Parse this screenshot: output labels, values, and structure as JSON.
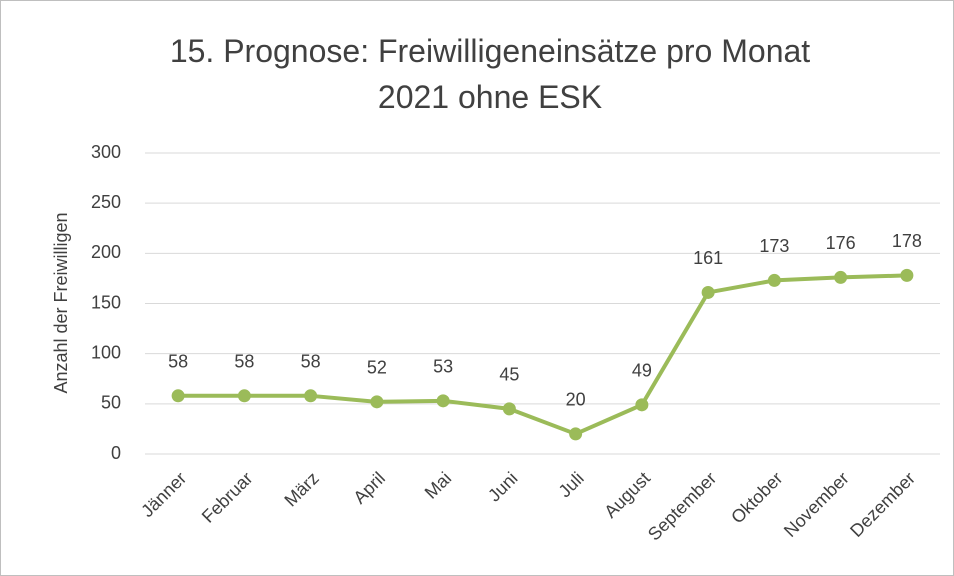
{
  "chart_data": {
    "type": "line",
    "title": "15. Prognose: Freiwilligeneinsätze pro Monat 2021 ohne ESK",
    "y_label": "Anzahl der Freiwilligen",
    "categories": [
      "Jänner",
      "Februar",
      "März",
      "April",
      "Mai",
      "Juni",
      "Juli",
      "August",
      "September",
      "Oktober",
      "November",
      "Dezember"
    ],
    "values": [
      58,
      58,
      58,
      52,
      53,
      45,
      20,
      49,
      161,
      173,
      176,
      178
    ],
    "color": "#9bbb59",
    "ylim": [
      0,
      300
    ],
    "yticks": [
      0,
      50,
      100,
      150,
      200,
      250,
      300
    ],
    "grid": true
  }
}
